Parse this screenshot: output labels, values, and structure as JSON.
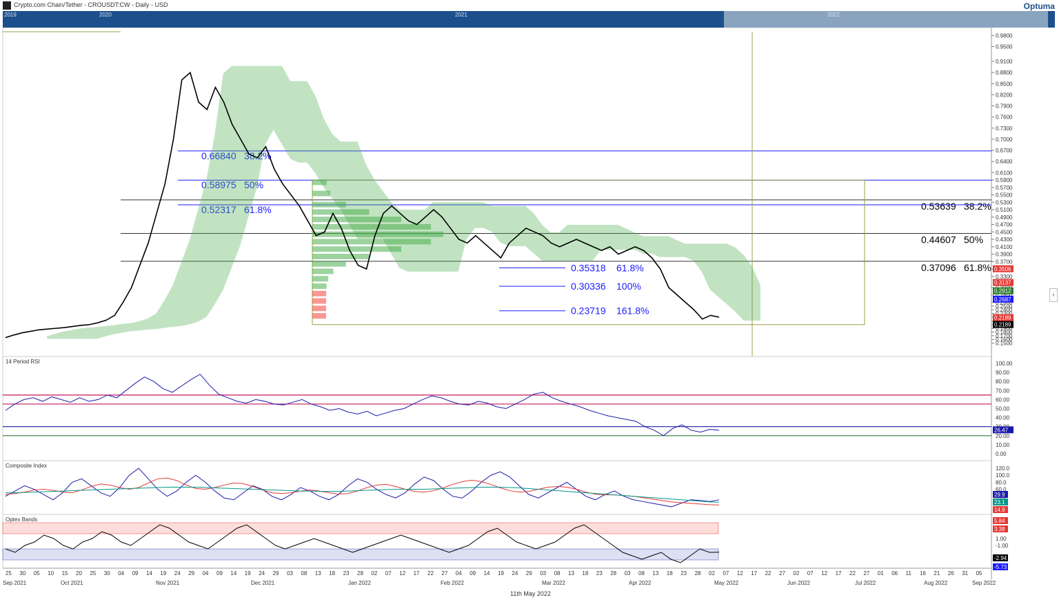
{
  "header": {
    "title": "Crypto.com Chain/Tether - CROUSDT:CW - Daily - USD",
    "brand": "Optuma",
    "nav_years": [
      "2019",
      "2020",
      "2021",
      "2022"
    ]
  },
  "footer": {
    "date": "11th May 2022"
  },
  "colors": {
    "price": "#000000",
    "cloud_green": "#4caf50",
    "cloud_red": "#f44336",
    "fib": "#1a1aff",
    "rsi": "#1a1aaa",
    "box": "#9aa04a"
  },
  "chart_data": [
    {
      "type": "line",
      "panel": "price",
      "x_axis": {
        "day_ticks": [
          "25",
          "30",
          "05",
          "10",
          "15",
          "20",
          "25",
          "30",
          "04",
          "09",
          "14",
          "19",
          "24",
          "29",
          "04",
          "09",
          "14",
          "19",
          "24",
          "29",
          "03",
          "08",
          "13",
          "18",
          "23",
          "28",
          "02",
          "07",
          "12",
          "17",
          "22",
          "27",
          "04",
          "09",
          "14",
          "19",
          "24",
          "29",
          "03",
          "08",
          "13",
          "18",
          "23",
          "28",
          "03",
          "08",
          "13",
          "18",
          "23",
          "28",
          "02",
          "07",
          "12",
          "17",
          "22",
          "27",
          "02",
          "07",
          "12",
          "17",
          "22",
          "27",
          "01",
          "06",
          "11",
          "16",
          "21",
          "26",
          "31",
          "05"
        ],
        "month_labels": [
          "Sep 2021",
          "Oct 2021",
          "Nov 2021",
          "Dec 2021",
          "Jan 2022",
          "Feb 2022",
          "Mar 2022",
          "Apr 2022",
          "May 2022",
          "Jun 2022",
          "Jul 2022",
          "Aug 2022",
          "Sep 2022"
        ]
      },
      "y_ticks": [
        "0.9800",
        "0.9500",
        "0.9100",
        "0.8800",
        "0.8500",
        "0.8200",
        "0.7900",
        "0.7600",
        "0.7300",
        "0.7000",
        "0.6700",
        "0.6400",
        "0.6100",
        "0.5900",
        "0.5700",
        "0.5500",
        "0.5300",
        "0.5100",
        "0.4900",
        "0.4700",
        "0.4500",
        "0.4300",
        "0.4100",
        "0.3900",
        "0.3700",
        "0.3500",
        "0.3300",
        "0.3000",
        "0.2800",
        "0.2600",
        "0.2500",
        "0.2400",
        "0.2300",
        "0.2200",
        "0.2100",
        "0.2000",
        "0.1900",
        "0.1800",
        "0.1700",
        "0.1600",
        "0.1500"
      ],
      "price_tags": [
        {
          "value": "0.3506",
          "color": "#e53935"
        },
        {
          "value": "0.3137",
          "color": "#e53935"
        },
        {
          "value": "0.2912",
          "color": "#2e7d32"
        },
        {
          "value": "0.2687",
          "color": "#1a1aff"
        },
        {
          "value": "0.2189",
          "color": "#e53935"
        },
        {
          "value": "0.2189",
          "color": "#000000"
        }
      ],
      "fib_left": [
        {
          "value": "0.66840",
          "pct": "38.2%"
        },
        {
          "value": "0.58975",
          "pct": "50%"
        },
        {
          "value": "0.52317",
          "pct": "61.8%"
        }
      ],
      "fib_right": [
        {
          "value": "0.53639",
          "pct": "38.2%"
        },
        {
          "value": "0.44607",
          "pct": "50%"
        },
        {
          "value": "0.37096",
          "pct": "61.8%"
        }
      ],
      "fib_ext": [
        {
          "value": "0.35318",
          "pct": "61.8%"
        },
        {
          "value": "0.30336",
          "pct": "100%"
        },
        {
          "value": "0.23719",
          "pct": "161.8%"
        }
      ],
      "close_series": [
        0.165,
        0.172,
        0.178,
        0.182,
        0.186,
        0.188,
        0.19,
        0.192,
        0.195,
        0.198,
        0.2,
        0.205,
        0.212,
        0.225,
        0.26,
        0.3,
        0.36,
        0.42,
        0.5,
        0.58,
        0.7,
        0.86,
        0.88,
        0.8,
        0.78,
        0.84,
        0.8,
        0.74,
        0.7,
        0.66,
        0.65,
        0.68,
        0.62,
        0.58,
        0.55,
        0.52,
        0.48,
        0.44,
        0.45,
        0.5,
        0.46,
        0.4,
        0.36,
        0.35,
        0.44,
        0.5,
        0.52,
        0.5,
        0.48,
        0.47,
        0.49,
        0.51,
        0.49,
        0.46,
        0.43,
        0.42,
        0.44,
        0.42,
        0.4,
        0.38,
        0.42,
        0.44,
        0.46,
        0.45,
        0.44,
        0.42,
        0.41,
        0.42,
        0.43,
        0.42,
        0.41,
        0.4,
        0.41,
        0.39,
        0.4,
        0.41,
        0.4,
        0.38,
        0.35,
        0.3,
        0.28,
        0.26,
        0.24,
        0.215,
        0.225,
        0.22
      ]
    },
    {
      "type": "line",
      "panel": "rsi",
      "title": "14 Period RSI",
      "y_ticks": [
        "100.00",
        "90.00",
        "80.00",
        "70.00",
        "60.00",
        "50.00",
        "40.00",
        "30.00",
        "20.00",
        "10.00",
        "0.00"
      ],
      "levels": [
        65,
        55,
        30,
        20
      ],
      "last_value": "26.47",
      "values": [
        48,
        55,
        60,
        62,
        58,
        63,
        60,
        57,
        62,
        58,
        60,
        65,
        62,
        70,
        78,
        85,
        80,
        72,
        68,
        75,
        82,
        88,
        76,
        66,
        62,
        58,
        56,
        60,
        58,
        55,
        54,
        57,
        60,
        55,
        52,
        48,
        50,
        46,
        44,
        47,
        42,
        45,
        48,
        50,
        55,
        60,
        64,
        62,
        58,
        55,
        54,
        58,
        56,
        52,
        50,
        55,
        60,
        66,
        68,
        62,
        58,
        55,
        52,
        48,
        45,
        42,
        40,
        38,
        36,
        30,
        26,
        20,
        28,
        32,
        26,
        24,
        27,
        26
      ]
    },
    {
      "type": "line",
      "panel": "composite",
      "title": "Composite Index",
      "y_ticks": [
        "120.0",
        "100.0",
        "80.0",
        "60.0",
        "40.0",
        "20.0"
      ],
      "tags": [
        {
          "value": "29.9",
          "color": "#1a1aaa"
        },
        {
          "value": "23.1",
          "color": "#009688"
        },
        {
          "value": "14.9",
          "color": "#e53935"
        }
      ],
      "series": [
        {
          "name": "",
          "color": "#1a1aaa",
          "values": [
            40,
            55,
            70,
            60,
            45,
            30,
            50,
            80,
            90,
            70,
            50,
            40,
            65,
            100,
            120,
            90,
            60,
            40,
            55,
            80,
            100,
            80,
            55,
            35,
            30,
            50,
            70,
            60,
            40,
            30,
            45,
            65,
            55,
            40,
            30,
            45,
            70,
            90,
            80,
            60,
            45,
            35,
            50,
            75,
            95,
            85,
            60,
            40,
            35,
            55,
            80,
            100,
            110,
            95,
            70,
            45,
            35,
            50,
            65,
            80,
            60,
            40,
            30,
            45,
            55,
            40,
            30,
            25,
            20,
            15,
            10,
            20,
            30,
            28,
            25,
            29.9
          ]
        },
        {
          "name": "",
          "color": "#e53935",
          "values": [
            45,
            48,
            52,
            58,
            60,
            57,
            52,
            50,
            58,
            68,
            75,
            72,
            65,
            60,
            65,
            78,
            90,
            92,
            85,
            72,
            62,
            60,
            65,
            72,
            78,
            76,
            68,
            58,
            50,
            48,
            50,
            55,
            58,
            55,
            50,
            46,
            48,
            55,
            65,
            72,
            74,
            68,
            60,
            54,
            52,
            56,
            64,
            74,
            82,
            86,
            82,
            74,
            64,
            56,
            52,
            54,
            60,
            66,
            68,
            66,
            60,
            52,
            46,
            44,
            44,
            42,
            40,
            36,
            32,
            28,
            24,
            22,
            20,
            18,
            16,
            14.9
          ]
        },
        {
          "name": "",
          "color": "#009688",
          "values": [
            50,
            50,
            51,
            52,
            53,
            54,
            55,
            56,
            57,
            58,
            59,
            60,
            61,
            62,
            63,
            64,
            65,
            66,
            66,
            66,
            66,
            65,
            64,
            63,
            62,
            61,
            60,
            59,
            58,
            57,
            56,
            55,
            55,
            54,
            54,
            54,
            55,
            56,
            57,
            58,
            59,
            60,
            60,
            60,
            60,
            61,
            62,
            63,
            64,
            65,
            66,
            66,
            66,
            65,
            64,
            62,
            60,
            58,
            56,
            54,
            52,
            50,
            48,
            46,
            44,
            42,
            40,
            38,
            36,
            34,
            32,
            30,
            28,
            26,
            24,
            23.1
          ]
        }
      ]
    },
    {
      "type": "line",
      "panel": "optex",
      "title": "Optex Bands",
      "y_ticks": [
        "1.00",
        "-1.00"
      ],
      "tags": [
        {
          "value": "5.84",
          "color": "#e53935"
        },
        {
          "value": "3.38",
          "color": "#e53935"
        },
        {
          "value": "-2.94",
          "color": "#000000"
        },
        {
          "value": "-5.73",
          "color": "#1a1aff"
        }
      ],
      "values": [
        -2,
        -3,
        -1,
        0,
        2,
        1,
        -1,
        -2,
        0,
        1,
        3,
        2,
        0,
        -1,
        1,
        3,
        5,
        4,
        2,
        0,
        -1,
        -2,
        0,
        2,
        4,
        5,
        3,
        1,
        -1,
        -2,
        -1,
        0,
        1,
        0,
        -1,
        -2,
        -3,
        -2,
        -1,
        0,
        1,
        2,
        1,
        0,
        -1,
        -2,
        -3,
        -2,
        -1,
        1,
        3,
        4,
        2,
        0,
        -1,
        -2,
        -1,
        0,
        2,
        4,
        5,
        3,
        1,
        -1,
        -3,
        -4,
        -5,
        -4,
        -3,
        -5,
        -6,
        -4,
        -2,
        -3,
        -2.94
      ]
    }
  ]
}
